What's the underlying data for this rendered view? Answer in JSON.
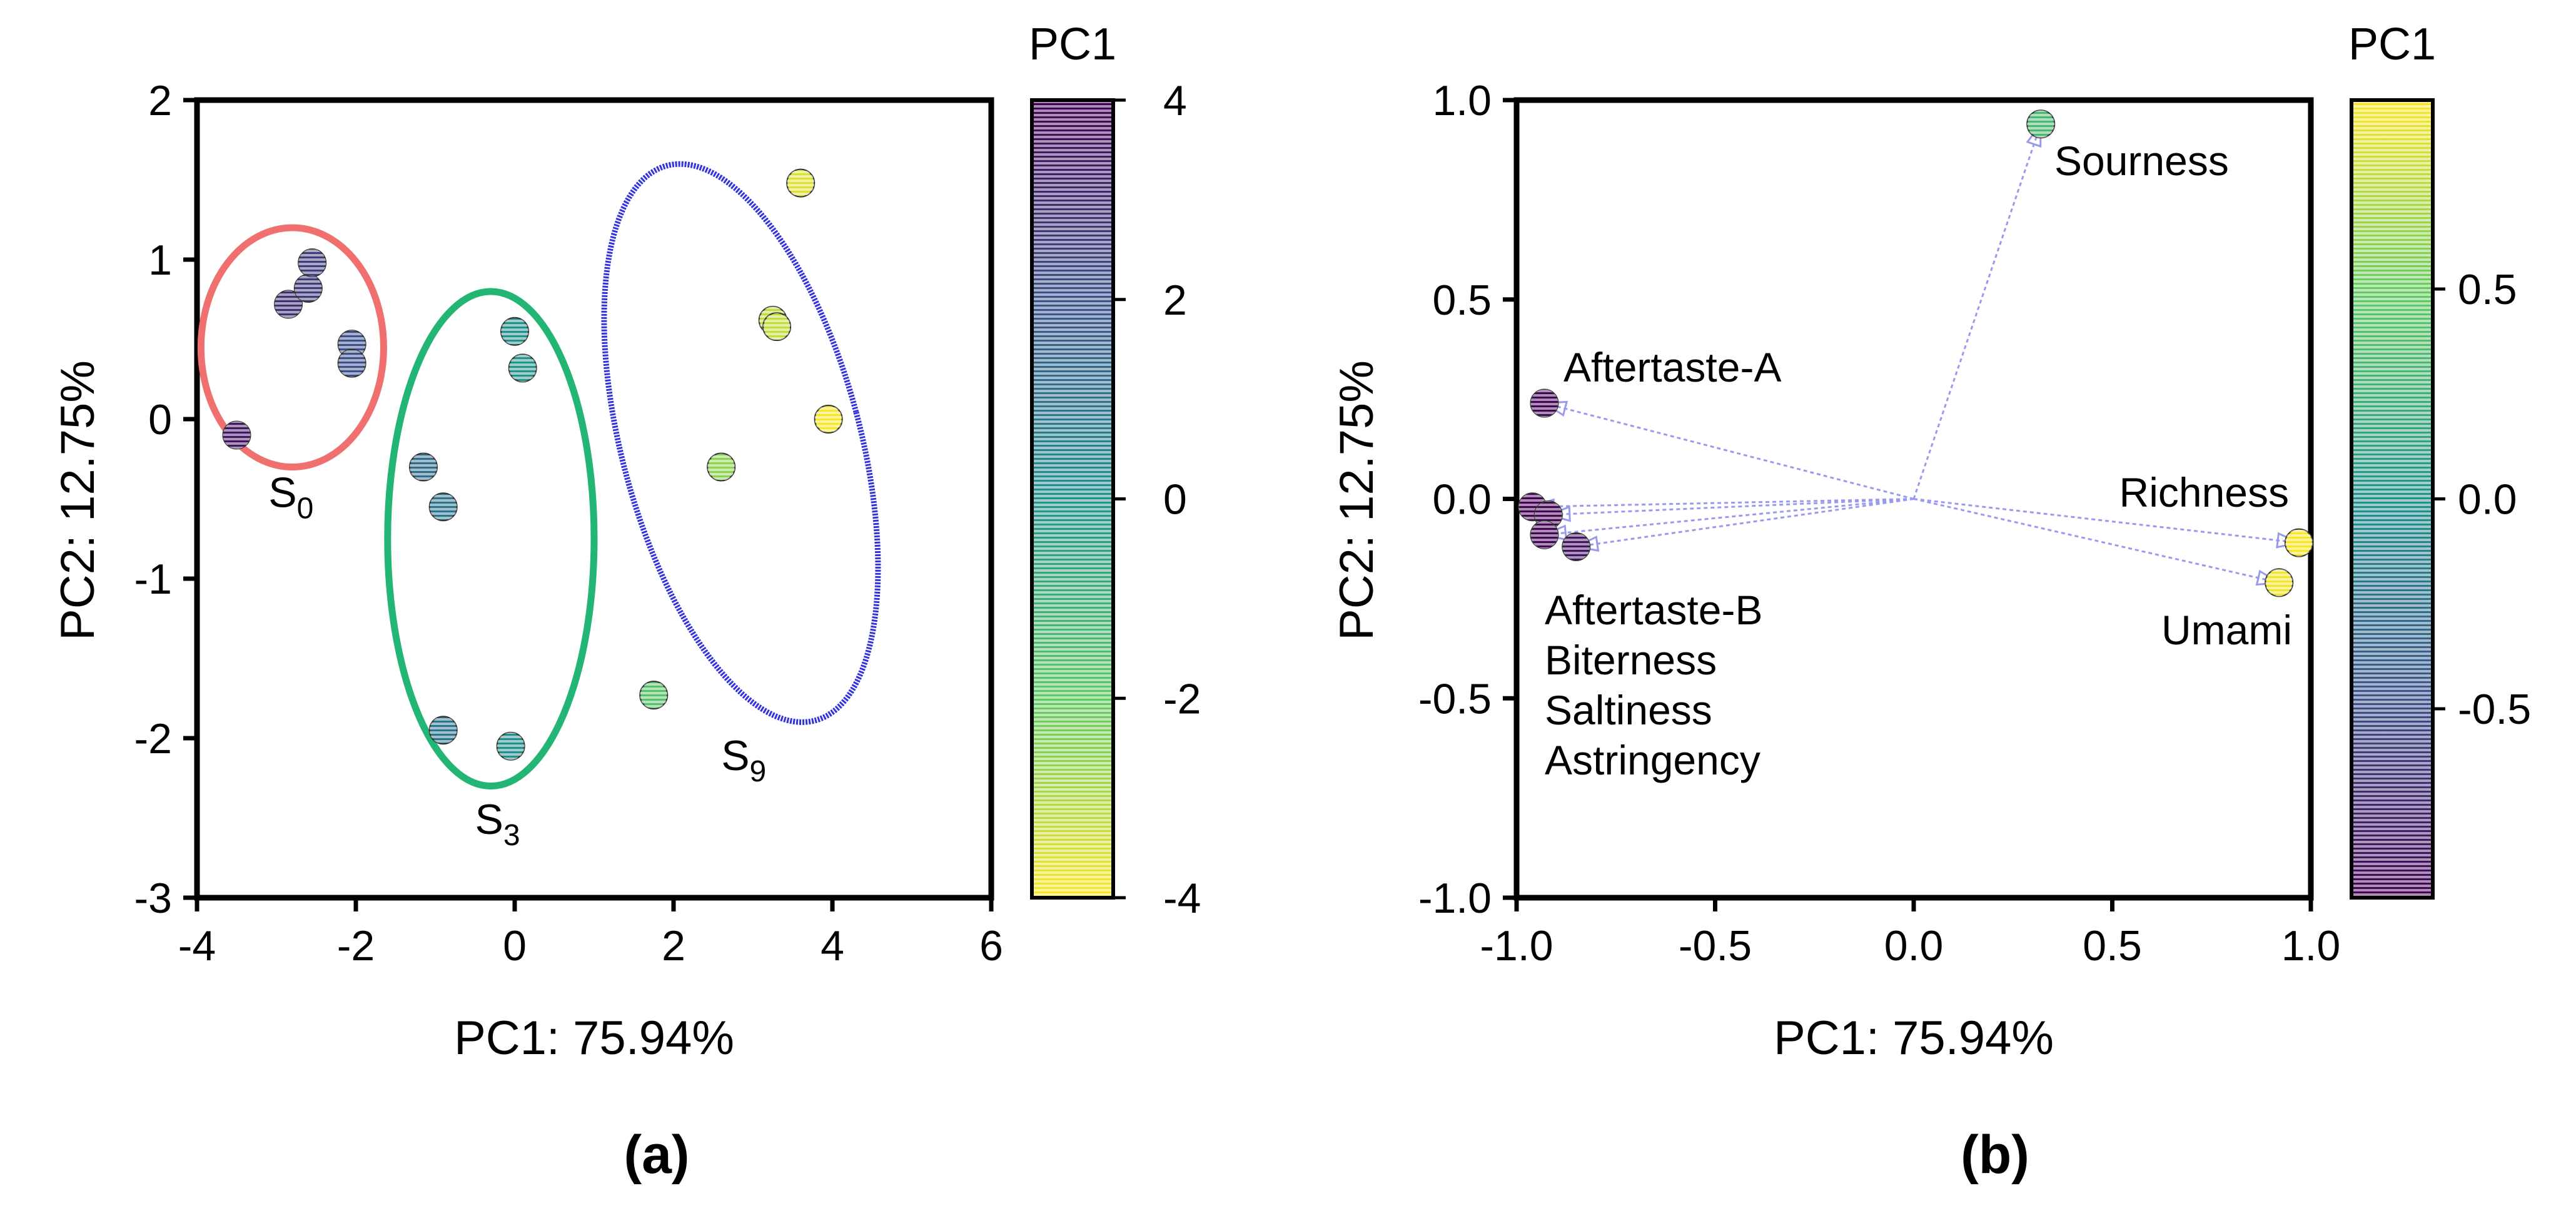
{
  "chart_data": [
    {
      "type": "scatter",
      "panel_label": "(a)",
      "title": "",
      "xlabel": "PC1: 75.94%",
      "ylabel": "PC2: 12.75%",
      "xlim": [
        -4,
        6
      ],
      "ylim": [
        -3,
        2
      ],
      "xticks": [
        "-4",
        "-2",
        "0",
        "2",
        "4",
        "6"
      ],
      "yticks": [
        "-3",
        "-2",
        "-1",
        "0",
        "1",
        "2"
      ],
      "colorbar": {
        "title": "PC1",
        "range": [
          -4,
          4
        ],
        "ticks": [
          "-4",
          "-2",
          "0",
          "2",
          "4"
        ]
      },
      "points": [
        {
          "x": -3.5,
          "y": -0.1,
          "group": "S0"
        },
        {
          "x": -2.85,
          "y": 0.72,
          "group": "S0"
        },
        {
          "x": -2.6,
          "y": 0.82,
          "group": "S0"
        },
        {
          "x": -2.55,
          "y": 0.98,
          "group": "S0"
        },
        {
          "x": -2.05,
          "y": 0.47,
          "group": "S0"
        },
        {
          "x": -2.05,
          "y": 0.35,
          "group": "S0"
        },
        {
          "x": -1.15,
          "y": -0.3,
          "group": "S3"
        },
        {
          "x": -0.9,
          "y": -0.55,
          "group": "S3"
        },
        {
          "x": -0.9,
          "y": -1.95,
          "group": "S3"
        },
        {
          "x": 0.0,
          "y": 0.55,
          "group": "S3"
        },
        {
          "x": 0.1,
          "y": 0.32,
          "group": "S3"
        },
        {
          "x": -0.05,
          "y": -2.05,
          "group": "S3"
        },
        {
          "x": 1.75,
          "y": -1.73,
          "group": "S9"
        },
        {
          "x": 2.6,
          "y": -0.3,
          "group": "S9"
        },
        {
          "x": 3.25,
          "y": 0.62,
          "group": "S9"
        },
        {
          "x": 3.3,
          "y": 0.58,
          "group": "S9"
        },
        {
          "x": 3.6,
          "y": 1.48,
          "group": "S9"
        },
        {
          "x": 3.95,
          "y": 0.0,
          "group": "S9"
        }
      ],
      "groups": [
        {
          "name": "S0",
          "label_main": "S",
          "label_sub": "0",
          "color": "#f07070",
          "style": "solid",
          "cx": -2.8,
          "cy": 0.45,
          "rx": 1.15,
          "ry": 0.75,
          "angle_deg": 0,
          "label_x": -3.1,
          "label_y": -0.55
        },
        {
          "name": "S3",
          "label_main": "S",
          "label_sub": "3",
          "color": "#22b573",
          "style": "solid",
          "cx": -0.3,
          "cy": -0.75,
          "rx": 1.3,
          "ry": 1.55,
          "angle_deg": 0,
          "label_x": -0.5,
          "label_y": -2.6
        },
        {
          "name": "S9",
          "label_main": "S",
          "label_sub": "9",
          "color": "#3333dd",
          "style": "hatched",
          "cx": 2.85,
          "cy": -0.15,
          "rx": 1.5,
          "ry": 1.8,
          "angle_deg": 15,
          "label_x": 2.6,
          "label_y": -2.2
        }
      ]
    },
    {
      "type": "scatter",
      "panel_label": "(b)",
      "title": "",
      "xlabel": "PC1: 75.94%",
      "ylabel": "PC2: 12.75%",
      "xlim": [
        -1.0,
        1.0
      ],
      "ylim": [
        -1.0,
        1.0
      ],
      "xticks": [
        "-1.0",
        "-0.5",
        "0.0",
        "0.5",
        "1.0"
      ],
      "yticks": [
        "-1.0",
        "-0.5",
        "0.0",
        "0.5",
        "1.0"
      ],
      "colorbar": {
        "title": "PC1",
        "range": [
          -0.95,
          0.95
        ],
        "ticks": [
          "-0.5",
          "0.0",
          "0.5"
        ],
        "tick_values": [
          -0.5,
          0.0,
          0.5
        ]
      },
      "loadings": [
        {
          "name": "Sourness",
          "x": 0.32,
          "y": 0.94
        },
        {
          "name": "Aftertaste-A",
          "x": -0.93,
          "y": 0.24
        },
        {
          "name": "Aftertaste-B",
          "x": -0.96,
          "y": -0.02
        },
        {
          "name": "Biterness",
          "x": -0.92,
          "y": -0.04
        },
        {
          "name": "Saltiness",
          "x": -0.93,
          "y": -0.09
        },
        {
          "name": "Astringency",
          "x": -0.85,
          "y": -0.12
        },
        {
          "name": "Richness",
          "x": 0.97,
          "y": -0.11
        },
        {
          "name": "Umami",
          "x": 0.92,
          "y": -0.21
        }
      ],
      "annotations": {
        "sourness": "Sourness",
        "aftertaste_a": "Aftertaste-A",
        "richness": "Richness",
        "umami": "Umami",
        "left_group": [
          "Aftertaste-B",
          "Biterness",
          "Saltiness",
          "Astringency"
        ]
      }
    }
  ],
  "colors": {
    "viridis_low": "#440154",
    "viridis_mid": "#21918c",
    "viridis_high": "#fde725",
    "arrow": "#9999ee"
  }
}
